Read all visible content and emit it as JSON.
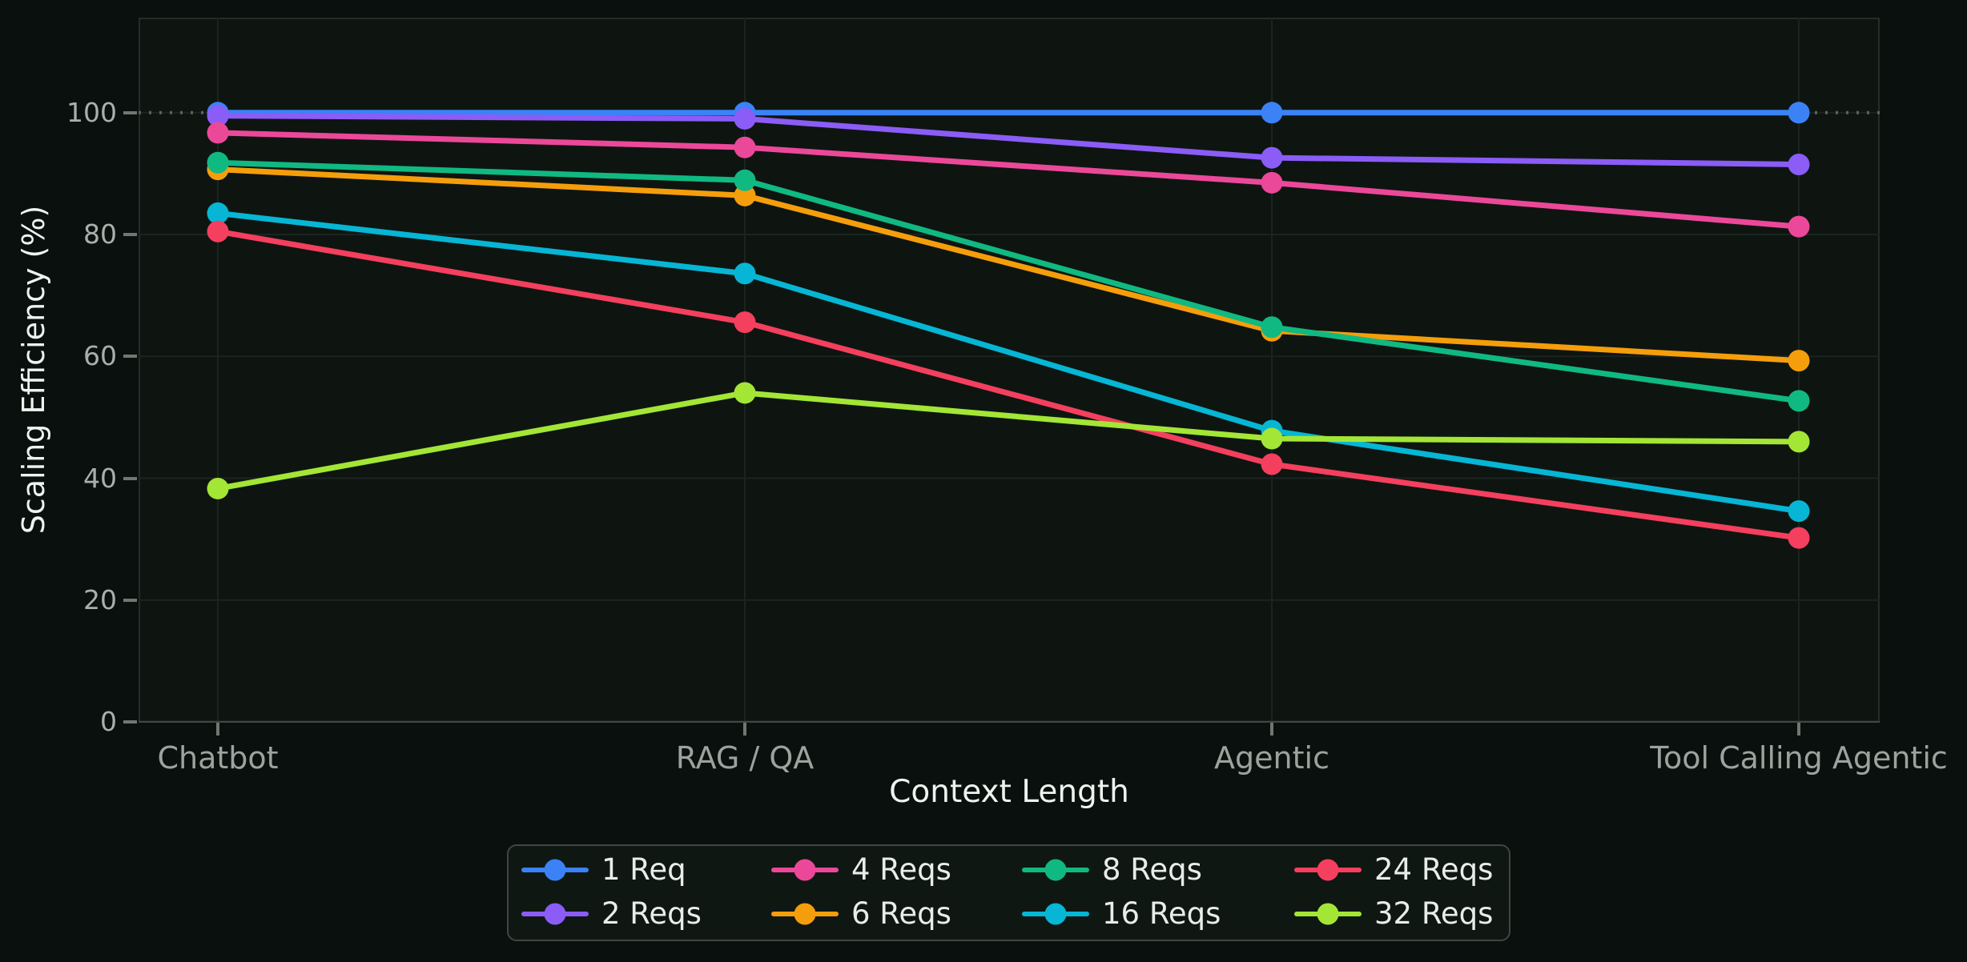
{
  "figure": {
    "background": "#0a100d",
    "plot_background": "#0e1511",
    "plot_border_color": "#242d28",
    "gridline_color": "#1b2420",
    "axis_line_color": "#3e4943",
    "tick_color": "#6f7973",
    "tick_label_color": "#a7b1ab",
    "category_label_color": "#9aa49e",
    "title_text_color": "#eef3ef",
    "legend_background": "#0f1713",
    "legend_border_color": "#3f4742",
    "legend_text_color": "#e8ede9"
  },
  "chart_data": {
    "type": "line",
    "title": "",
    "xlabel": "Context Length",
    "ylabel": "Scaling Efficiency (%)",
    "categories": [
      "Chatbot",
      "RAG / QA",
      "Agentic",
      "Tool Calling Agentic"
    ],
    "yticks": [
      0,
      20,
      40,
      60,
      80,
      100
    ],
    "ylim": [
      0,
      115.7
    ],
    "grid": true,
    "reference_line": {
      "y": 100,
      "style": "dotted",
      "color": "#5a645e"
    },
    "legend_position": "bottom-center",
    "legend_ncol": 4,
    "series": [
      {
        "name": "1 Req",
        "color": "#3b82f6",
        "values": [
          100,
          100,
          100,
          100
        ]
      },
      {
        "name": "2 Reqs",
        "color": "#8b5cf6",
        "values": [
          99.5,
          99.0,
          92.6,
          91.5
        ]
      },
      {
        "name": "4 Reqs",
        "color": "#ec4899",
        "values": [
          96.7,
          94.3,
          88.5,
          81.3
        ]
      },
      {
        "name": "6 Reqs",
        "color": "#f59e0b",
        "values": [
          90.7,
          86.4,
          64.2,
          59.3
        ]
      },
      {
        "name": "8 Reqs",
        "color": "#10b981",
        "values": [
          91.8,
          88.9,
          64.8,
          52.7
        ]
      },
      {
        "name": "16 Reqs",
        "color": "#06b6d4",
        "values": [
          83.5,
          73.6,
          47.8,
          34.6
        ]
      },
      {
        "name": "24 Reqs",
        "color": "#f43f5e",
        "values": [
          80.5,
          65.6,
          42.3,
          30.2
        ]
      },
      {
        "name": "32 Reqs",
        "color": "#a3e635",
        "values": [
          38.3,
          54.0,
          46.5,
          46.0
        ]
      }
    ]
  }
}
